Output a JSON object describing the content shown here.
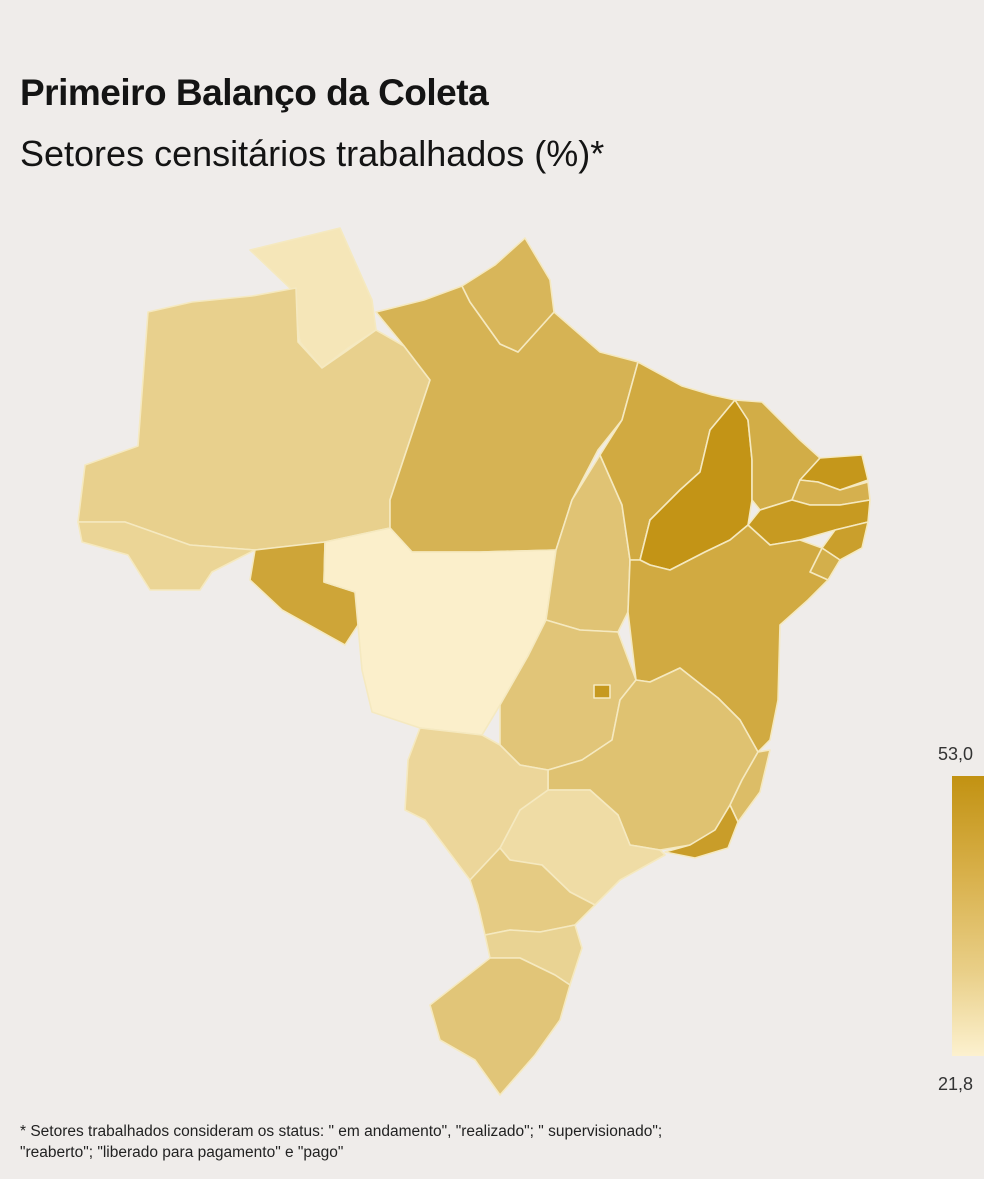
{
  "title": "Primeiro Balanço da Coleta",
  "subtitle": "Setores censitários trabalhados (%)*",
  "legend": {
    "max_label": "53,0",
    "min_label": "21,8",
    "min_color": "#fcf1cf",
    "max_color": "#c29212"
  },
  "footnote": {
    "line1": "* Setores trabalhados consideram os status: \" em andamento\", \"realizado\"; \" supervisionado\";",
    "line2": "\"reaberto\"; \"liberado para pagamento\" e \"pago\""
  },
  "map": {
    "region": "Brasil",
    "states": [
      {
        "id": "RR",
        "level": 0.12
      },
      {
        "id": "AM",
        "level": 0.35
      },
      {
        "id": "AC",
        "level": 0.3
      },
      {
        "id": "RO",
        "level": 0.8
      },
      {
        "id": "PA",
        "level": 0.65
      },
      {
        "id": "AP",
        "level": 0.62
      },
      {
        "id": "MT",
        "level": 0.02
      },
      {
        "id": "TO",
        "level": 0.48
      },
      {
        "id": "MA",
        "level": 0.75
      },
      {
        "id": "PI",
        "level": 0.98
      },
      {
        "id": "CE",
        "level": 0.72
      },
      {
        "id": "RN",
        "level": 0.95
      },
      {
        "id": "PB",
        "level": 0.68
      },
      {
        "id": "PE",
        "level": 0.92
      },
      {
        "id": "AL",
        "level": 0.86
      },
      {
        "id": "SE",
        "level": 0.7
      },
      {
        "id": "BA",
        "level": 0.75
      },
      {
        "id": "GO",
        "level": 0.46
      },
      {
        "id": "DF",
        "level": 0.93
      },
      {
        "id": "MG",
        "level": 0.5
      },
      {
        "id": "ES",
        "level": 0.55
      },
      {
        "id": "RJ",
        "level": 0.88
      },
      {
        "id": "SP",
        "level": 0.22
      },
      {
        "id": "MS",
        "level": 0.28
      },
      {
        "id": "PR",
        "level": 0.4
      },
      {
        "id": "SC",
        "level": 0.32
      },
      {
        "id": "RS",
        "level": 0.46
      }
    ]
  }
}
